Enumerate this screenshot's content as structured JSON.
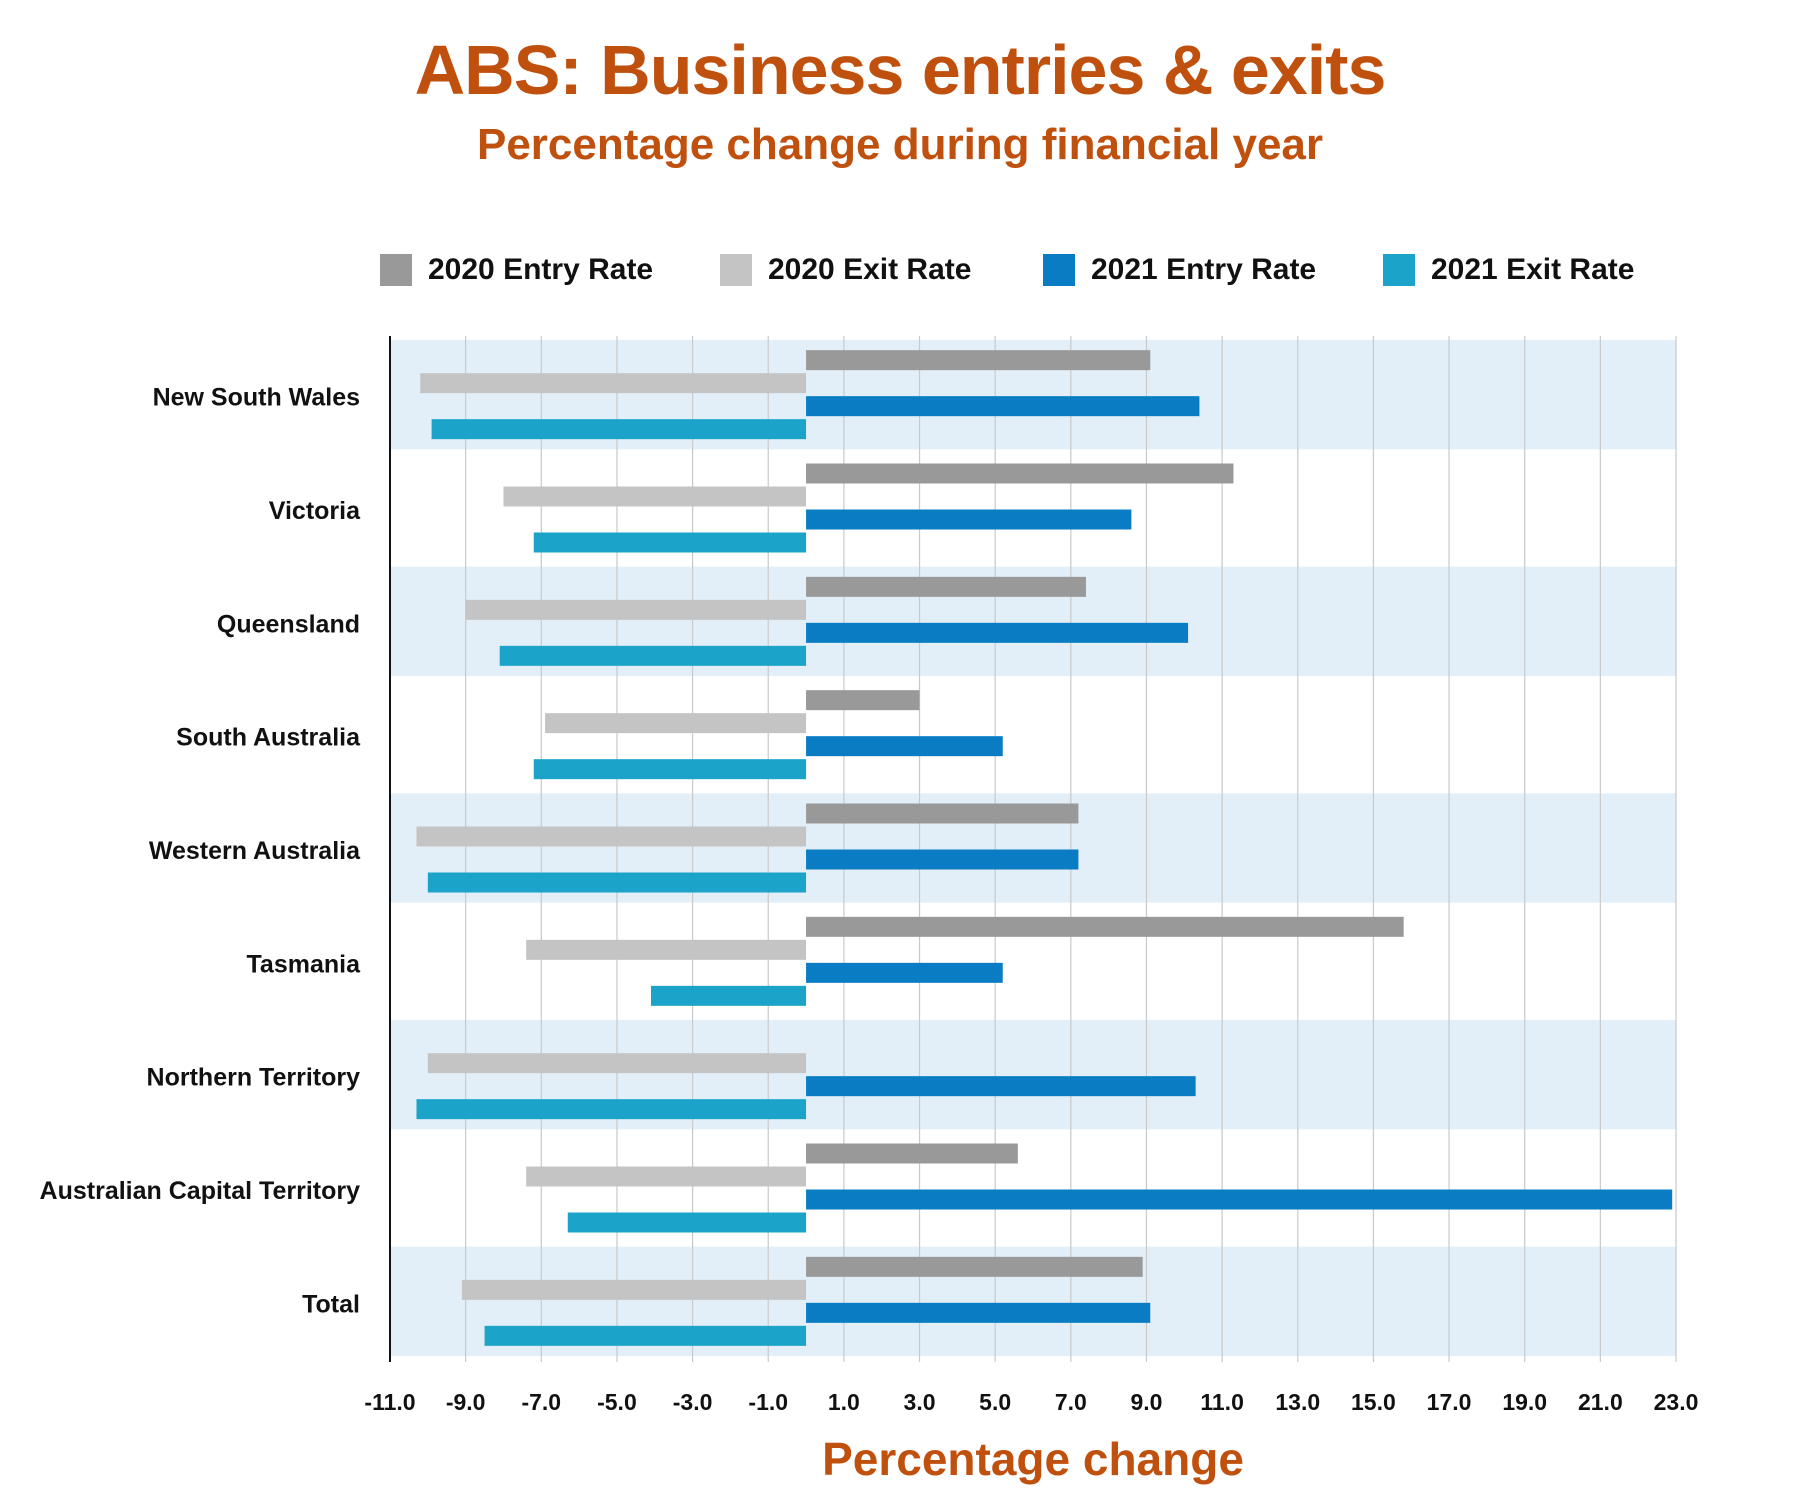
{
  "title": "ABS: Business entries & exits",
  "subtitle": "Percentage change during financial year",
  "colors": {
    "title": "#c0500e",
    "band": "#e3eff8",
    "grid": "#c9c9c9",
    "axis": "#111111",
    "series": [
      "#999999",
      "#c4c4c4",
      "#0a7cc4",
      "#1ba3c9"
    ]
  },
  "chart_data": {
    "type": "bar",
    "orientation": "horizontal",
    "title": "ABS: Business entries & exits",
    "subtitle": "Percentage change during financial year",
    "xlabel": "Percentage change",
    "ylabel": "",
    "xlim": [
      -11.0,
      23.0
    ],
    "xticks": [
      "-11.0",
      "-9.0",
      "-7.0",
      "-5.0",
      "-3.0",
      "-1.0",
      "1.0",
      "3.0",
      "5.0",
      "7.0",
      "9.0",
      "11.0",
      "13.0",
      "15.0",
      "17.0",
      "19.0",
      "21.0",
      "23.0"
    ],
    "legend_position": "top",
    "grid": true,
    "categories": [
      "New South Wales",
      "Victoria",
      "Queensland",
      "South Australia",
      "Western Australia",
      "Tasmania",
      "Northern Territory",
      "Australian Capital Territory",
      "Total"
    ],
    "series": [
      {
        "name": "2020 Entry Rate",
        "values": [
          9.1,
          11.3,
          7.4,
          3.0,
          7.2,
          15.8,
          null,
          5.6,
          8.9
        ]
      },
      {
        "name": "2020 Exit Rate",
        "values": [
          -10.2,
          -8.0,
          -9.0,
          -6.9,
          -10.3,
          -7.4,
          -10.0,
          -7.4,
          -9.1
        ]
      },
      {
        "name": "2021 Entry Rate",
        "values": [
          10.4,
          8.6,
          10.1,
          5.2,
          7.2,
          5.2,
          10.3,
          22.9,
          9.1
        ]
      },
      {
        "name": "2021 Exit Rate",
        "values": [
          -9.9,
          -7.2,
          -8.1,
          -7.2,
          -10.0,
          -4.1,
          -10.3,
          -6.3,
          -8.5
        ]
      }
    ]
  }
}
